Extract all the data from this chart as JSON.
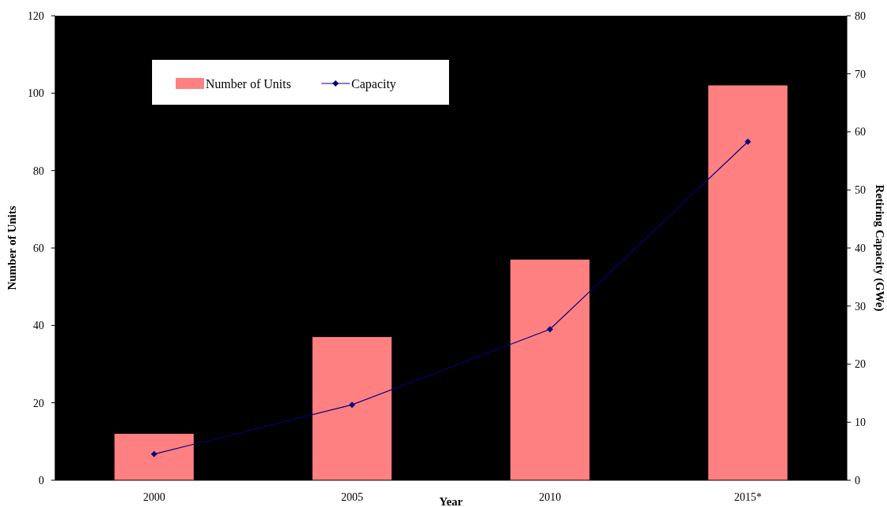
{
  "chart_data": {
    "type": "bar",
    "xlabel": "Year",
    "ylabel": "Number of Units",
    "y2label": "Retiring Capacity (GWe)",
    "categories": [
      "2000",
      "2005",
      "2010",
      "2015*"
    ],
    "series": [
      {
        "name": "Number of Units",
        "color": "#ff8080",
        "values": [
          12,
          37,
          57,
          102
        ]
      },
      {
        "name": "Capacity",
        "type": "line",
        "axis": "y2",
        "color": "#000080",
        "marker": "diamond",
        "values": [
          4.5,
          13,
          26,
          58.3
        ]
      }
    ],
    "ylim": [
      0,
      120
    ],
    "yticks": [
      0,
      20,
      40,
      60,
      80,
      100,
      120
    ],
    "y2lim": [
      0,
      80
    ],
    "y2ticks": [
      0,
      10,
      20,
      30,
      40,
      50,
      60,
      70,
      80
    ],
    "grid": false,
    "legend": "top left"
  }
}
